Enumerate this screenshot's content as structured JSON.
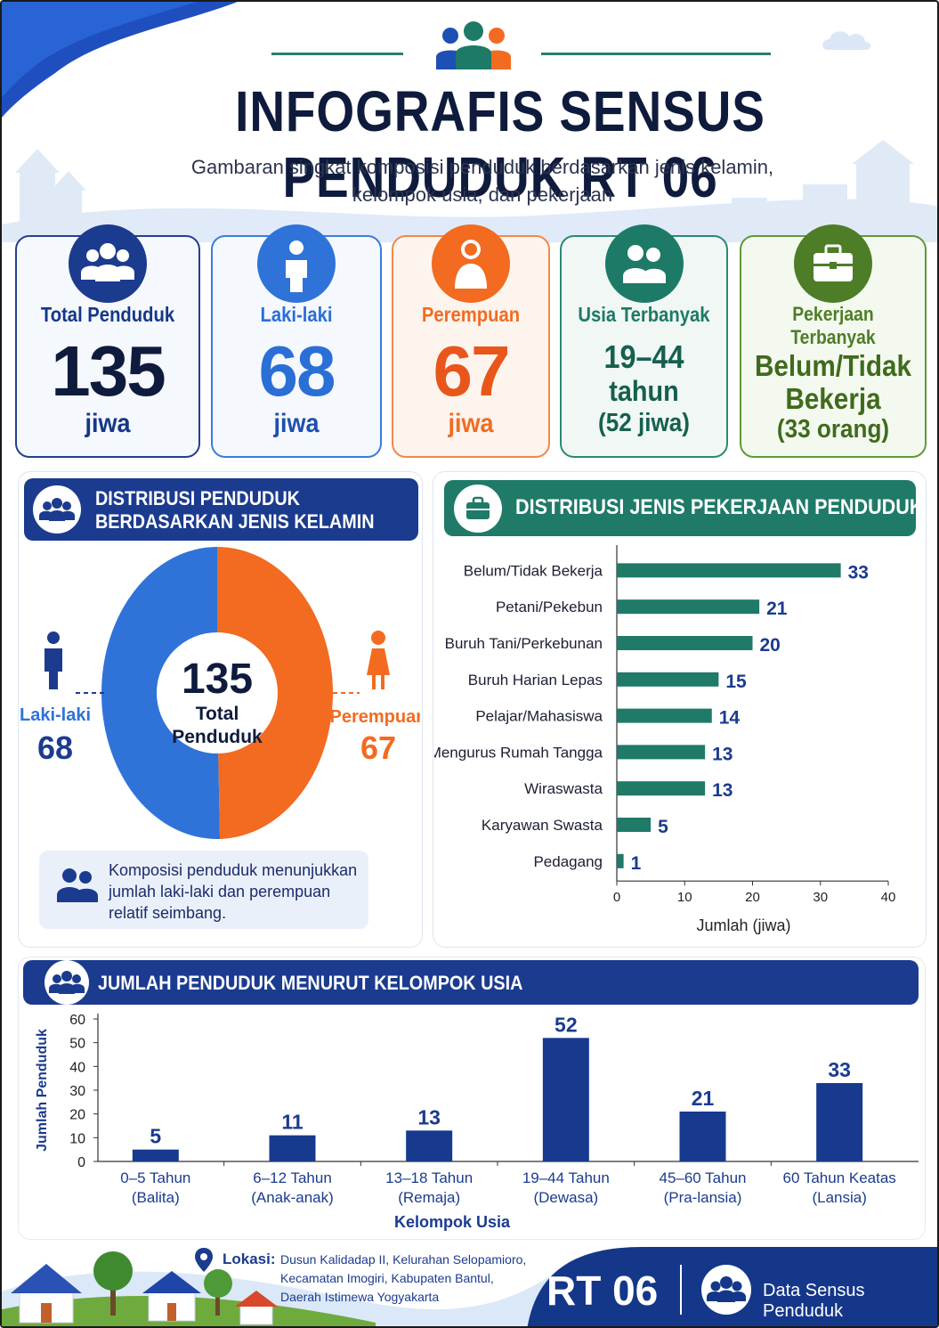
{
  "header": {
    "title": "INFOGRAFIS SENSUS PENDUDUK RT 06",
    "subtitle_line1": "Gambaran singkat komposisi penduduk berdasarkan jenis kelamin,",
    "subtitle_line2": "kelompok usia, dan pekerjaan"
  },
  "colors": {
    "navy": "#14378a",
    "blue": "#2f73d9",
    "orange": "#f26b21",
    "teal": "#1d7a66",
    "green": "#4e7d27",
    "bar_teal": "#1f7a68",
    "bar_navy": "#173a8f"
  },
  "stats": {
    "total": {
      "label": "Total Penduduk",
      "value": "135",
      "unit": "jiwa",
      "icon": "people-group-icon"
    },
    "male": {
      "label": "Laki-laki",
      "value": "68",
      "unit": "jiwa",
      "icon": "man-icon"
    },
    "female": {
      "label": "Perempuan",
      "value": "67",
      "unit": "jiwa",
      "icon": "woman-icon"
    },
    "age": {
      "label": "Usia Terbanyak",
      "line1": "19–44",
      "line2": "tahun",
      "line3": "(52 jiwa)",
      "icon": "two-people-icon"
    },
    "job": {
      "label": "Pekerjaan Terbanyak",
      "line1": "Belum/Tidak",
      "line2": "Bekerja",
      "line3": "(33 orang)",
      "icon": "briefcase-icon"
    }
  },
  "gender_panel": {
    "title_line1": "DISTRIBUSI PENDUDUK",
    "title_line2": "BERDASARKAN JENIS KELAMIN",
    "center_value": "135",
    "center_label1": "Total",
    "center_label2": "Penduduk",
    "male_label": "Laki-laki",
    "male_value": "68",
    "female_label": "Perempuan",
    "female_value": "67",
    "note": "Komposisi penduduk menunjukkan jumlah laki-laki dan perempuan relatif seimbang."
  },
  "job_panel": {
    "title": "DISTRIBUSI JENIS PEKERJAAN PENDUDUK"
  },
  "age_panel": {
    "title": "JUMLAH PENDUDUK MENURUT KELOMPOK USIA"
  },
  "footer": {
    "location_label": "Lokasi:",
    "location_line1": "Dusun Kalidadap II, Kelurahan Selopamioro,",
    "location_line2": "Kecamatan Imogiri, Kabupaten Bantul,",
    "location_line3": "Daerah Istimewa Yogyakarta",
    "rt_label": "RT 06",
    "source_label": "Data Sensus Penduduk"
  },
  "chart_data": [
    {
      "type": "pie",
      "title": "DISTRIBUSI PENDUDUK BERDASARKAN JENIS KELAMIN",
      "categories": [
        "Laki-laki",
        "Perempuan"
      ],
      "values": [
        68,
        67
      ]
    },
    {
      "type": "bar",
      "orientation": "horizontal",
      "title": "DISTRIBUSI JENIS PEKERJAAN PENDUDUK",
      "categories": [
        "Belum/Tidak Bekerja",
        "Petani/Pekebun",
        "Buruh Tani/Perkebunan",
        "Buruh Harian Lepas",
        "Pelajar/Mahasiswa",
        "Mengurus Rumah Tangga",
        "Wiraswasta",
        "Karyawan Swasta",
        "Pedagang"
      ],
      "values": [
        33,
        21,
        20,
        15,
        14,
        13,
        13,
        5,
        1
      ],
      "xlabel": "Jumlah (jiwa)",
      "xlim": [
        0,
        40
      ],
      "xticks": [
        0,
        10,
        20,
        30,
        40
      ]
    },
    {
      "type": "bar",
      "title": "JUMLAH PENDUDUK MENURUT KELOMPOK USIA",
      "categories": [
        [
          "0–5 Tahun",
          "(Balita)"
        ],
        [
          "6–12 Tahun",
          "(Anak-anak)"
        ],
        [
          "13–18 Tahun",
          "(Remaja)"
        ],
        [
          "19–44 Tahun",
          "(Dewasa)"
        ],
        [
          "45–60 Tahun",
          "(Pra-lansia)"
        ],
        [
          "60 Tahun Keatas",
          "(Lansia)"
        ]
      ],
      "values": [
        5,
        11,
        13,
        52,
        21,
        33
      ],
      "xlabel": "Kelompok Usia",
      "ylabel": "Jumlah Penduduk",
      "ylim": [
        0,
        60
      ],
      "yticks": [
        0,
        10,
        20,
        30,
        40,
        50,
        60
      ]
    }
  ]
}
